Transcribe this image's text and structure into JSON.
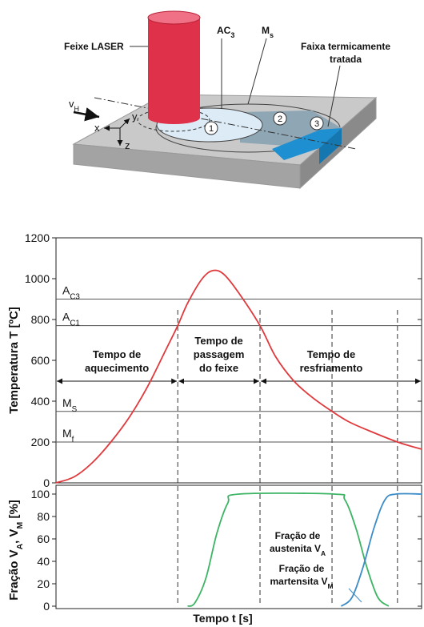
{
  "diagram": {
    "laser": "Feixe LASER",
    "ac3": [
      {
        "text": "AC",
        "sub": "3"
      }
    ],
    "ms": [
      {
        "text": "M",
        "sub": "s"
      }
    ],
    "band": [
      "Faixa termicamente",
      "tratada"
    ],
    "vh": [
      {
        "text": "v",
        "sub": "H"
      }
    ],
    "axes": [
      "x",
      "y",
      "z"
    ],
    "zones": [
      "1",
      "2",
      "3"
    ]
  },
  "chart_data": [
    {
      "type": "line",
      "ylabel": "Temperatura T [ºC]",
      "xlim": [
        0,
        100
      ],
      "ylim": [
        0,
        1200
      ],
      "yticks": [
        0,
        200,
        400,
        600,
        800,
        1000,
        1200
      ],
      "x": [
        0,
        5,
        10,
        15,
        20,
        25,
        30,
        33.3,
        36,
        40,
        43,
        46,
        50,
        55.8,
        60,
        65,
        70,
        75.5,
        80,
        85,
        93.4,
        100
      ],
      "series": [
        {
          "color": "#e0393c",
          "values": [
            0,
            30,
            100,
            200,
            320,
            470,
            650,
            770,
            880,
            1000,
            1040,
            1020,
            930,
            770,
            620,
            500,
            420,
            350,
            300,
            260,
            200,
            165
          ]
        }
      ],
      "hlines": [
        {
          "value": 900,
          "label": [
            {
              "text": "A",
              "sub": "C3"
            }
          ]
        },
        {
          "value": 770,
          "label": [
            {
              "text": "A",
              "sub": "C1"
            }
          ]
        },
        {
          "value": 350,
          "label": [
            {
              "text": "M",
              "sub": "S"
            }
          ]
        },
        {
          "value": 200,
          "label": [
            {
              "text": "M",
              "sub": "f"
            }
          ]
        }
      ],
      "vlines": [
        33.3,
        55.8,
        75.5,
        93.4
      ],
      "spans": [
        {
          "x": [
            0,
            33.3
          ],
          "label": [
            "Tempo de",
            "aquecimento"
          ]
        },
        {
          "x": [
            33.3,
            55.8
          ],
          "label": [
            "Tempo de",
            "passagem",
            "do feixe"
          ]
        },
        {
          "x": [
            55.8,
            100
          ],
          "label": [
            "Tempo de",
            "resfriamento"
          ]
        }
      ]
    },
    {
      "type": "line",
      "ylabel": [
        {
          "text": "Fração V",
          "sub": "A"
        },
        {
          "text": ", V",
          "sub": "M"
        },
        {
          "text": " [%]"
        }
      ],
      "xlabel": "Tempo t [s]",
      "xlim": [
        0,
        100
      ],
      "ylim": [
        0,
        100
      ],
      "yticks": [
        0,
        20,
        40,
        60,
        80,
        100
      ],
      "series": [
        {
          "name": [
            "Fração de",
            [
              {
                "text": "austenita V",
                "sub": "A"
              }
            ]
          ],
          "color": "#3cb464",
          "x": [
            36,
            38,
            41,
            44,
            47,
            50,
            76,
            79,
            82,
            85,
            88,
            91
          ],
          "values": [
            0,
            3,
            25,
            65,
            92,
            100,
            100,
            95,
            70,
            35,
            8,
            0
          ]
        },
        {
          "name": [
            "Fração de",
            [
              {
                "text": "martensita V",
                "sub": "M"
              }
            ]
          ],
          "color": "#3c8cc8",
          "x": [
            78,
            81,
            84,
            87,
            90,
            93,
            100
          ],
          "values": [
            0,
            8,
            35,
            70,
            95,
            100,
            100
          ]
        }
      ]
    }
  ]
}
